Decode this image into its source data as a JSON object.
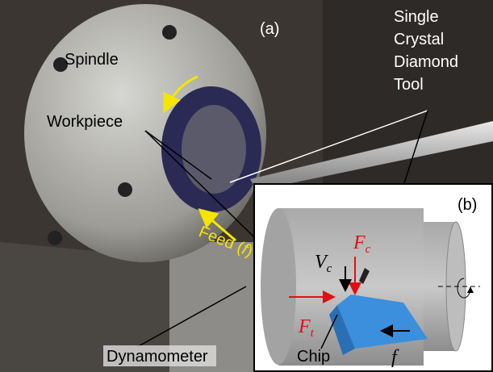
{
  "photo": {
    "panel_label": "(a)",
    "spindle": "Spindle",
    "workpiece": "Workpiece",
    "tool": [
      "Single",
      "Crystal",
      "Diamond",
      "Tool"
    ],
    "feed": {
      "text": "Feed (",
      "symbol": "f",
      "close": ")"
    },
    "dynamometer": "Dynamometer"
  },
  "inset": {
    "panel_label": "(b)",
    "cutting_force": {
      "symbol": "F",
      "sub": "c"
    },
    "cutting_speed": {
      "symbol": "V",
      "sub": "c"
    },
    "thrust_force": {
      "symbol": "F",
      "sub": "t"
    },
    "chip": "Chip",
    "feed": "f"
  }
}
